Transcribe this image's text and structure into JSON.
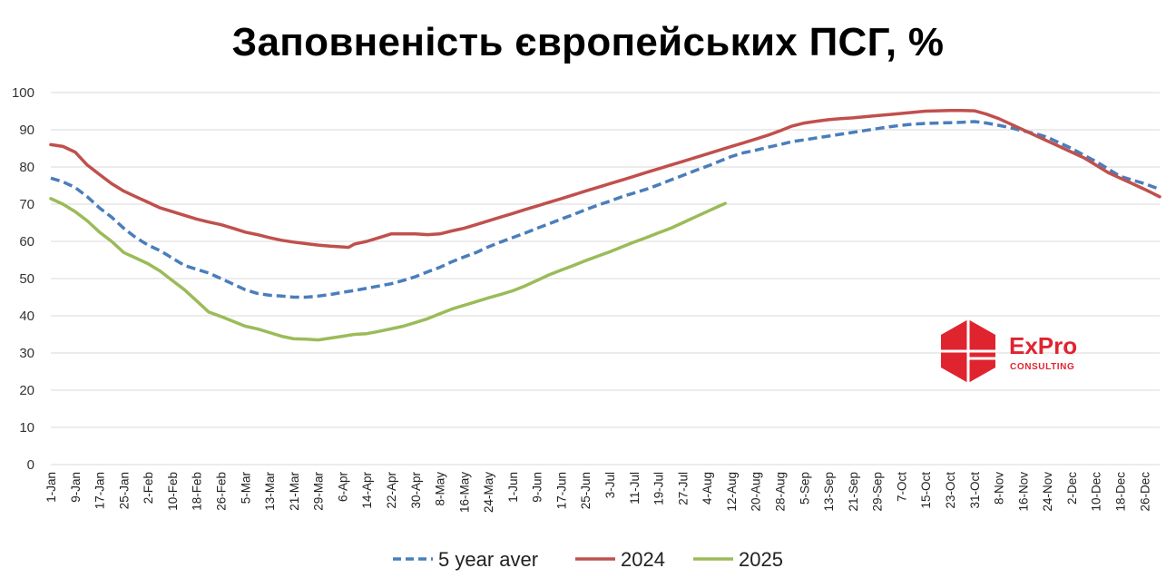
{
  "chart_data": {
    "type": "line",
    "title": "Заповненість європейських ПСГ, %",
    "ylim": [
      0,
      100
    ],
    "y_ticks": [
      0,
      10,
      20,
      30,
      40,
      50,
      60,
      70,
      80,
      90,
      100
    ],
    "grid": "horizontal",
    "legend_position": "bottom",
    "x_day_range": [
      1,
      366
    ],
    "x_tick_labels": [
      "1-Jan",
      "9-Jan",
      "17-Jan",
      "25-Jan",
      "2-Feb",
      "10-Feb",
      "18-Feb",
      "26-Feb",
      "5-Mar",
      "13-Mar",
      "21-Mar",
      "29-Mar",
      "6-Apr",
      "14-Apr",
      "22-Apr",
      "30-Apr",
      "8-May",
      "16-May",
      "24-May",
      "1-Jun",
      "9-Jun",
      "17-Jun",
      "25-Jun",
      "3-Jul",
      "11-Jul",
      "19-Jul",
      "27-Jul",
      "4-Aug",
      "12-Aug",
      "20-Aug",
      "28-Aug",
      "5-Sep",
      "13-Sep",
      "21-Sep",
      "29-Sep",
      "7-Oct",
      "15-Oct",
      "23-Oct",
      "31-Oct",
      "8-Nov",
      "16-Nov",
      "24-Nov",
      "2-Dec",
      "10-Dec",
      "18-Dec",
      "26-Dec"
    ],
    "series": [
      {
        "name": "5 year aver",
        "color": "#4a7ebb",
        "style": "dashed",
        "points": [
          [
            1,
            77
          ],
          [
            5,
            76
          ],
          [
            9,
            74.5
          ],
          [
            13,
            72
          ],
          [
            17,
            69
          ],
          [
            21,
            66.5
          ],
          [
            25,
            63.5
          ],
          [
            29,
            61
          ],
          [
            33,
            59
          ],
          [
            37,
            57.5
          ],
          [
            41,
            55.5
          ],
          [
            45,
            53.5
          ],
          [
            49,
            52.5
          ],
          [
            53,
            51.5
          ],
          [
            57,
            50
          ],
          [
            61,
            48.5
          ],
          [
            65,
            47
          ],
          [
            69,
            46
          ],
          [
            73,
            45.5
          ],
          [
            77,
            45.3
          ],
          [
            81,
            45
          ],
          [
            85,
            45
          ],
          [
            89,
            45.3
          ],
          [
            93,
            45.7
          ],
          [
            97,
            46.3
          ],
          [
            101,
            46.8
          ],
          [
            105,
            47.4
          ],
          [
            109,
            48
          ],
          [
            113,
            48.6
          ],
          [
            117,
            49.5
          ],
          [
            121,
            50.5
          ],
          [
            125,
            51.8
          ],
          [
            129,
            53
          ],
          [
            133,
            54.5
          ],
          [
            137,
            55.8
          ],
          [
            141,
            57
          ],
          [
            145,
            58.5
          ],
          [
            149,
            59.8
          ],
          [
            153,
            61
          ],
          [
            157,
            62.2
          ],
          [
            161,
            63.5
          ],
          [
            165,
            64.7
          ],
          [
            169,
            66
          ],
          [
            173,
            67.2
          ],
          [
            177,
            68.5
          ],
          [
            181,
            69.7
          ],
          [
            185,
            70.8
          ],
          [
            189,
            72
          ],
          [
            193,
            73
          ],
          [
            197,
            74
          ],
          [
            201,
            75.2
          ],
          [
            205,
            76.5
          ],
          [
            209,
            77.7
          ],
          [
            213,
            79
          ],
          [
            217,
            80.2
          ],
          [
            221,
            81.5
          ],
          [
            225,
            82.8
          ],
          [
            229,
            83.8
          ],
          [
            233,
            84.5
          ],
          [
            237,
            85.3
          ],
          [
            241,
            86
          ],
          [
            245,
            86.8
          ],
          [
            249,
            87.3
          ],
          [
            253,
            87.8
          ],
          [
            257,
            88.3
          ],
          [
            261,
            88.8
          ],
          [
            265,
            89.3
          ],
          [
            269,
            89.8
          ],
          [
            273,
            90.3
          ],
          [
            277,
            90.8
          ],
          [
            281,
            91.2
          ],
          [
            285,
            91.5
          ],
          [
            289,
            91.7
          ],
          [
            293,
            91.8
          ],
          [
            297,
            91.9
          ],
          [
            301,
            92
          ],
          [
            305,
            92.2
          ],
          [
            309,
            91.8
          ],
          [
            313,
            91.2
          ],
          [
            317,
            90.5
          ],
          [
            321,
            89.7
          ],
          [
            325,
            89
          ],
          [
            329,
            88
          ],
          [
            333,
            86.5
          ],
          [
            337,
            85
          ],
          [
            341,
            83.2
          ],
          [
            345,
            81.5
          ],
          [
            349,
            79.5
          ],
          [
            353,
            77.5
          ],
          [
            357,
            76.5
          ],
          [
            361,
            75.5
          ],
          [
            366,
            74
          ]
        ]
      },
      {
        "name": "2024",
        "color": "#c0504d",
        "style": "solid",
        "points": [
          [
            1,
            86
          ],
          [
            5,
            85.5
          ],
          [
            9,
            84
          ],
          [
            13,
            80.5
          ],
          [
            17,
            78
          ],
          [
            21,
            75.5
          ],
          [
            25,
            73.5
          ],
          [
            29,
            72
          ],
          [
            33,
            70.5
          ],
          [
            37,
            69
          ],
          [
            41,
            68
          ],
          [
            45,
            67
          ],
          [
            49,
            66
          ],
          [
            53,
            65.2
          ],
          [
            57,
            64.5
          ],
          [
            61,
            63.5
          ],
          [
            65,
            62.5
          ],
          [
            69,
            61.8
          ],
          [
            73,
            61
          ],
          [
            77,
            60.3
          ],
          [
            81,
            59.8
          ],
          [
            85,
            59.4
          ],
          [
            89,
            59
          ],
          [
            93,
            58.7
          ],
          [
            97,
            58.5
          ],
          [
            99,
            58.4
          ],
          [
            101,
            59.3
          ],
          [
            105,
            60
          ],
          [
            109,
            61
          ],
          [
            113,
            62
          ],
          [
            117,
            62
          ],
          [
            121,
            62
          ],
          [
            125,
            61.8
          ],
          [
            129,
            62
          ],
          [
            133,
            62.8
          ],
          [
            137,
            63.5
          ],
          [
            141,
            64.5
          ],
          [
            145,
            65.5
          ],
          [
            149,
            66.5
          ],
          [
            153,
            67.5
          ],
          [
            157,
            68.5
          ],
          [
            161,
            69.5
          ],
          [
            165,
            70.5
          ],
          [
            169,
            71.5
          ],
          [
            173,
            72.5
          ],
          [
            177,
            73.5
          ],
          [
            181,
            74.5
          ],
          [
            185,
            75.5
          ],
          [
            189,
            76.5
          ],
          [
            193,
            77.5
          ],
          [
            197,
            78.5
          ],
          [
            201,
            79.5
          ],
          [
            205,
            80.5
          ],
          [
            209,
            81.5
          ],
          [
            213,
            82.5
          ],
          [
            217,
            83.5
          ],
          [
            221,
            84.5
          ],
          [
            225,
            85.5
          ],
          [
            229,
            86.5
          ],
          [
            233,
            87.5
          ],
          [
            237,
            88.5
          ],
          [
            241,
            89.7
          ],
          [
            245,
            91
          ],
          [
            249,
            91.8
          ],
          [
            253,
            92.3
          ],
          [
            257,
            92.7
          ],
          [
            261,
            93
          ],
          [
            265,
            93.2
          ],
          [
            269,
            93.5
          ],
          [
            273,
            93.8
          ],
          [
            277,
            94.1
          ],
          [
            281,
            94.4
          ],
          [
            285,
            94.7
          ],
          [
            289,
            95
          ],
          [
            293,
            95.1
          ],
          [
            297,
            95.2
          ],
          [
            301,
            95.2
          ],
          [
            305,
            95.1
          ],
          [
            309,
            94.2
          ],
          [
            313,
            93
          ],
          [
            317,
            91.5
          ],
          [
            321,
            90
          ],
          [
            325,
            88.5
          ],
          [
            329,
            87
          ],
          [
            333,
            85.5
          ],
          [
            337,
            84
          ],
          [
            341,
            82.5
          ],
          [
            345,
            80.5
          ],
          [
            349,
            78.5
          ],
          [
            353,
            77
          ],
          [
            357,
            75.5
          ],
          [
            361,
            74
          ],
          [
            366,
            72
          ]
        ]
      },
      {
        "name": "2025",
        "color": "#9bbb59",
        "style": "solid",
        "points": [
          [
            1,
            71.5
          ],
          [
            5,
            70
          ],
          [
            9,
            68
          ],
          [
            13,
            65.5
          ],
          [
            17,
            62.5
          ],
          [
            21,
            60
          ],
          [
            25,
            57
          ],
          [
            29,
            55.5
          ],
          [
            33,
            54
          ],
          [
            37,
            52
          ],
          [
            41,
            49.5
          ],
          [
            45,
            47
          ],
          [
            49,
            44
          ],
          [
            53,
            41
          ],
          [
            57,
            39.8
          ],
          [
            61,
            38.5
          ],
          [
            65,
            37.2
          ],
          [
            69,
            36.5
          ],
          [
            73,
            35.5
          ],
          [
            77,
            34.5
          ],
          [
            81,
            33.8
          ],
          [
            85,
            33.7
          ],
          [
            89,
            33.5
          ],
          [
            93,
            34
          ],
          [
            97,
            34.5
          ],
          [
            101,
            35
          ],
          [
            105,
            35.2
          ],
          [
            109,
            35.8
          ],
          [
            113,
            36.5
          ],
          [
            117,
            37.2
          ],
          [
            121,
            38.2
          ],
          [
            125,
            39.2
          ],
          [
            129,
            40.5
          ],
          [
            133,
            41.8
          ],
          [
            137,
            42.8
          ],
          [
            141,
            43.8
          ],
          [
            145,
            44.8
          ],
          [
            149,
            45.7
          ],
          [
            153,
            46.7
          ],
          [
            157,
            48
          ],
          [
            161,
            49.5
          ],
          [
            165,
            51
          ],
          [
            169,
            52.3
          ],
          [
            173,
            53.5
          ],
          [
            177,
            54.8
          ],
          [
            181,
            56
          ],
          [
            185,
            57.2
          ],
          [
            189,
            58.5
          ],
          [
            193,
            59.8
          ],
          [
            197,
            61
          ],
          [
            201,
            62.3
          ],
          [
            205,
            63.5
          ],
          [
            209,
            65
          ],
          [
            213,
            66.5
          ],
          [
            217,
            68
          ],
          [
            221,
            69.5
          ],
          [
            223,
            70.2
          ]
        ]
      }
    ]
  },
  "logo": {
    "name": "ExPro",
    "sub": "CONSULTING",
    "color": "#e0242f"
  }
}
